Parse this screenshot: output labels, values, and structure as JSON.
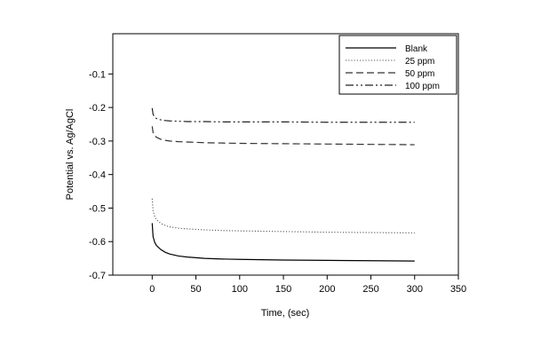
{
  "chart_data": {
    "type": "line",
    "title": "",
    "xlabel": "Time, (sec)",
    "ylabel": "Potential vs. Ag/AgCl",
    "xlim": [
      -45,
      350
    ],
    "ylim": [
      -0.7,
      0.02
    ],
    "xticks": [
      0,
      50,
      100,
      150,
      200,
      250,
      300,
      350
    ],
    "yticks": [
      -0.7,
      -0.6,
      -0.5,
      -0.4,
      -0.3,
      -0.2,
      -0.1
    ],
    "xtick_labels": [
      "0",
      "50",
      "100",
      "150",
      "200",
      "250",
      "300",
      "350"
    ],
    "ytick_labels": [
      "-0.7",
      "-0.6",
      "-0.5",
      "-0.4",
      "-0.3",
      "-0.2",
      "-0.1"
    ],
    "grid": false,
    "legend_position": "top-right",
    "series": [
      {
        "name": "Blank",
        "style": "solid",
        "color": "#000000",
        "x": [
          0,
          1,
          3,
          5,
          10,
          15,
          20,
          30,
          40,
          60,
          80,
          100,
          150,
          200,
          250,
          300
        ],
        "y": [
          -0.545,
          -0.585,
          -0.603,
          -0.612,
          -0.624,
          -0.632,
          -0.637,
          -0.643,
          -0.646,
          -0.65,
          -0.652,
          -0.653,
          -0.655,
          -0.656,
          -0.657,
          -0.658
        ]
      },
      {
        "name": "25 ppm",
        "style": "dotted",
        "color": "#555555",
        "x": [
          0,
          1,
          3,
          5,
          10,
          15,
          20,
          30,
          40,
          60,
          80,
          100,
          150,
          200,
          250,
          300
        ],
        "y": [
          -0.472,
          -0.508,
          -0.526,
          -0.535,
          -0.546,
          -0.552,
          -0.556,
          -0.56,
          -0.562,
          -0.565,
          -0.567,
          -0.568,
          -0.57,
          -0.572,
          -0.573,
          -0.574
        ]
      },
      {
        "name": "50 ppm",
        "style": "dashed",
        "color": "#333333",
        "x": [
          0,
          1,
          3,
          5,
          10,
          15,
          20,
          30,
          40,
          60,
          80,
          100,
          150,
          200,
          250,
          300
        ],
        "y": [
          -0.256,
          -0.275,
          -0.284,
          -0.289,
          -0.295,
          -0.298,
          -0.3,
          -0.302,
          -0.303,
          -0.305,
          -0.306,
          -0.307,
          -0.308,
          -0.309,
          -0.31,
          -0.311
        ]
      },
      {
        "name": "100 ppm",
        "style": "dash-dot-dot",
        "color": "#222222",
        "x": [
          0,
          1,
          3,
          5,
          10,
          15,
          20,
          30,
          40,
          60,
          80,
          100,
          150,
          200,
          250,
          300
        ],
        "y": [
          -0.202,
          -0.22,
          -0.229,
          -0.233,
          -0.237,
          -0.239,
          -0.24,
          -0.241,
          -0.242,
          -0.242,
          -0.243,
          -0.243,
          -0.243,
          -0.244,
          -0.244,
          -0.244
        ]
      }
    ]
  }
}
